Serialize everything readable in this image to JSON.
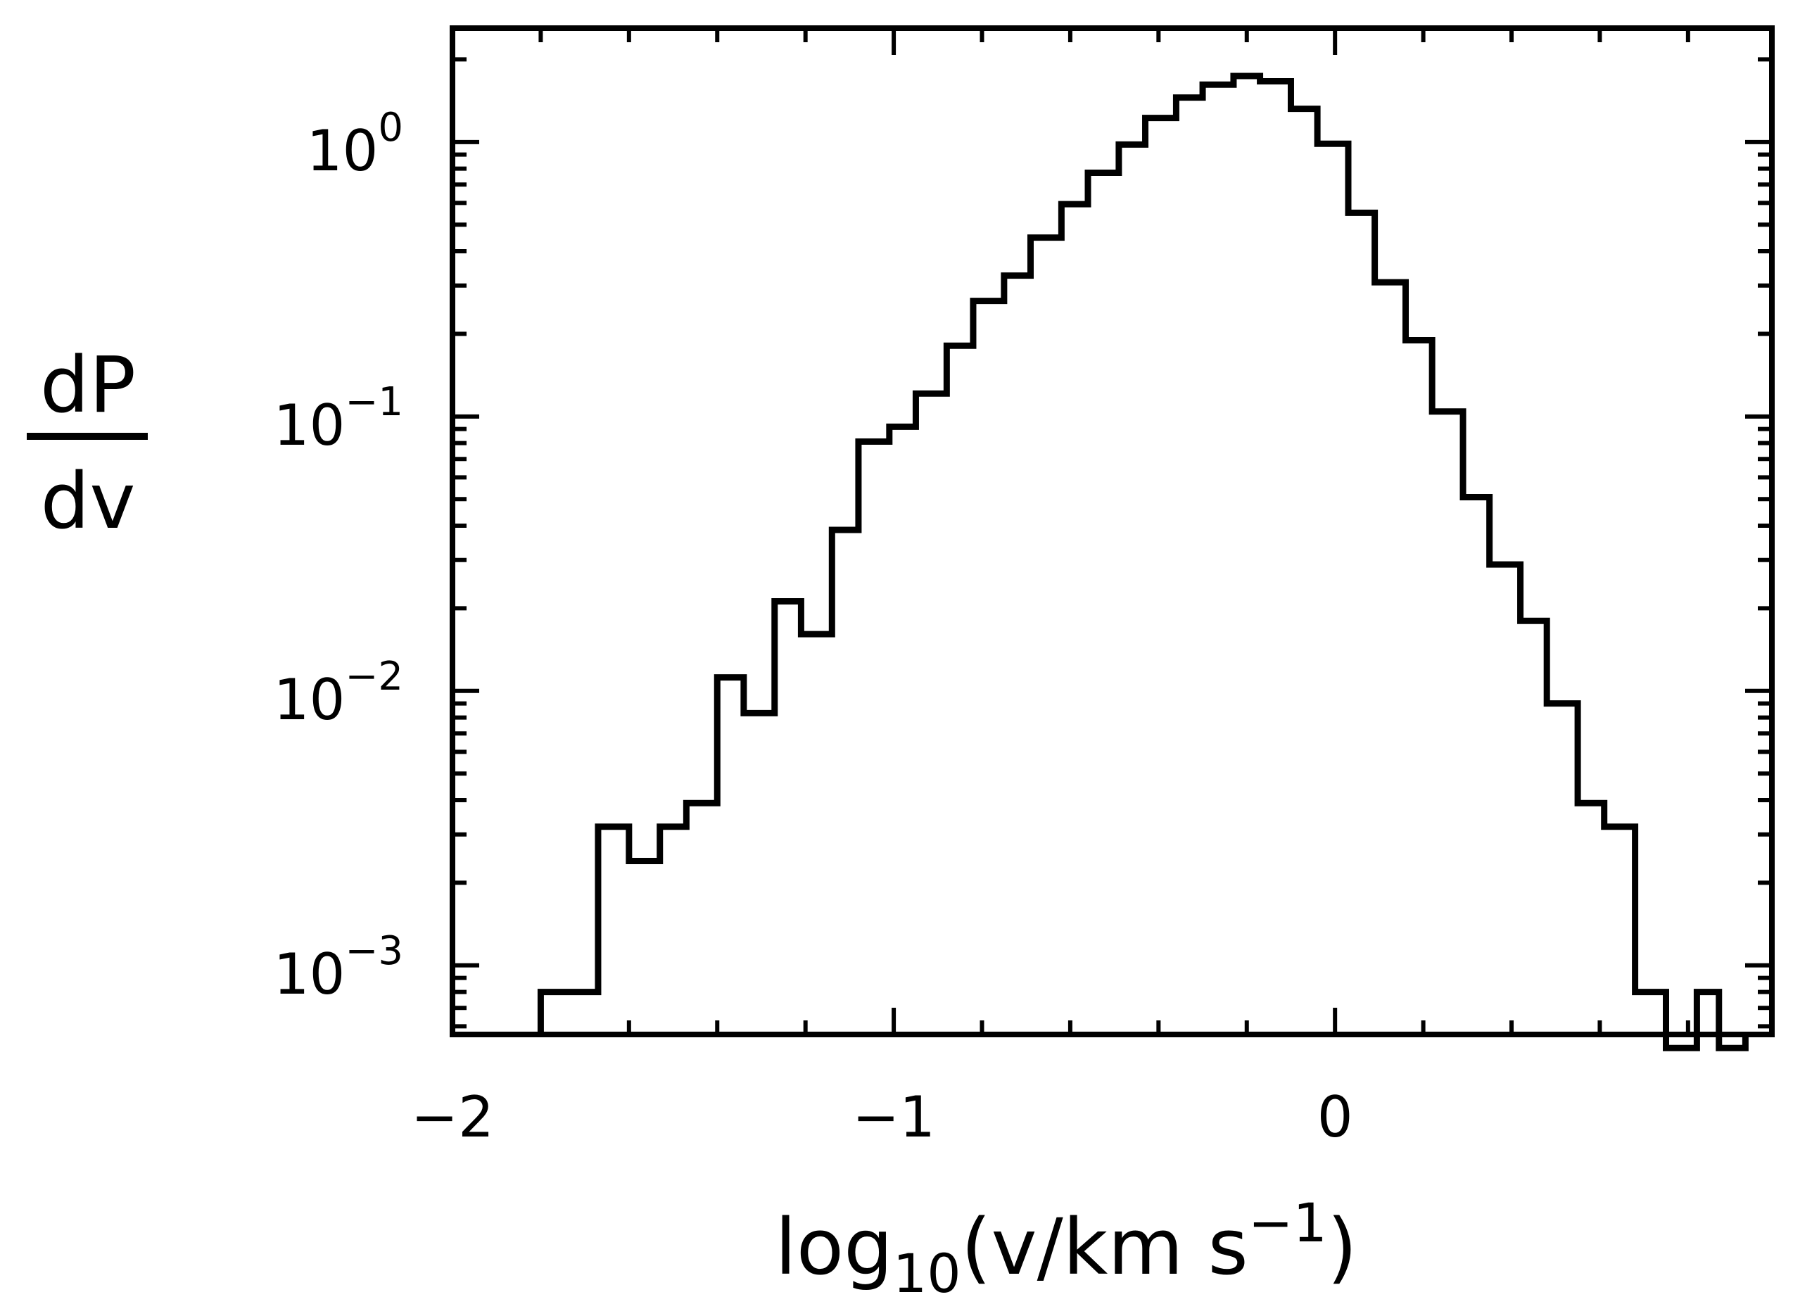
{
  "chart_data": {
    "type": "histogram",
    "title": "",
    "xlabel": {
      "base": "log",
      "sub": "10",
      "mid": "(v/km s",
      "sup": "−1",
      "end": ")"
    },
    "ylabel": {
      "numerator": "dP",
      "denominator": "dv"
    },
    "x_scale": "linear",
    "y_scale": "log",
    "xlim": [
      -2.0,
      0.99
    ],
    "ylim": [
      0.00056,
      2.6
    ],
    "grid": false,
    "legend": "none",
    "line_color": "#000000",
    "x_ticks": [
      {
        "value": -2,
        "label": "−2"
      },
      {
        "value": -1,
        "label": "−1"
      },
      {
        "value": 0,
        "label": "0"
      }
    ],
    "y_ticks": [
      {
        "value": 1,
        "base": "10",
        "exp": "0"
      },
      {
        "value": 0.1,
        "base": "10",
        "exp": "−1"
      },
      {
        "value": 0.01,
        "base": "10",
        "exp": "−2"
      },
      {
        "value": 0.001,
        "base": "10",
        "exp": "−3"
      }
    ],
    "bin_edges": [
      -1.8,
      -1.67,
      -1.6,
      -1.53,
      -1.47,
      -1.4,
      -1.34,
      -1.27,
      -1.21,
      -1.14,
      -1.08,
      -1.01,
      -0.95,
      -0.88,
      -0.82,
      -0.75,
      -0.69,
      -0.62,
      -0.56,
      -0.49,
      -0.43,
      -0.36,
      -0.3,
      -0.23,
      -0.17,
      -0.1,
      -0.04,
      0.03,
      0.09,
      0.16,
      0.22,
      0.29,
      0.35,
      0.42,
      0.48,
      0.55,
      0.61,
      0.68,
      0.75,
      0.82,
      0.87,
      0.93
    ],
    "values": [
      0.0008,
      0.0032,
      0.0024,
      0.0032,
      0.0039,
      0.0112,
      0.0083,
      0.0212,
      0.0161,
      0.0386,
      0.081,
      0.0918,
      0.1212,
      0.1811,
      0.2636,
      0.326,
      0.4485,
      0.5937,
      0.7725,
      0.9791,
      1.2241,
      1.452,
      1.6192,
      1.7402,
      1.6645,
      1.3213,
      0.9855,
      0.5523,
      0.3083,
      0.1896,
      0.1043,
      0.0508,
      0.0289,
      0.018,
      0.009,
      0.0039,
      0.0032,
      0.0008,
      0.0005,
      0.0008,
      0.0005
    ]
  }
}
